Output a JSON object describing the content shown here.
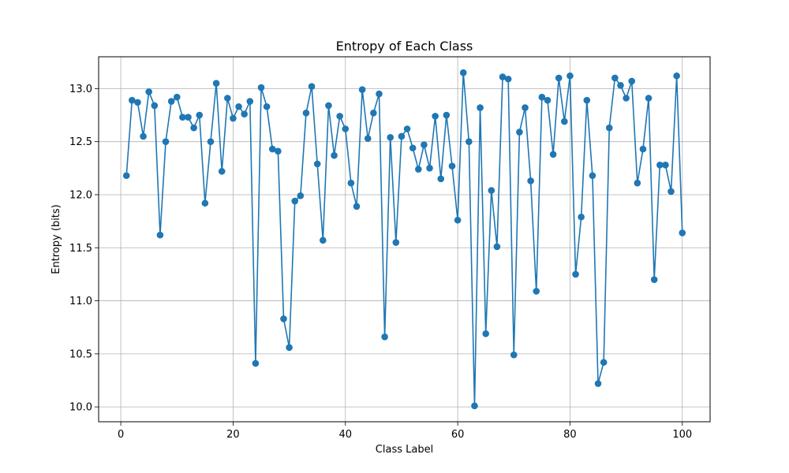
{
  "chart_data": {
    "type": "line",
    "title": "Entropy of Each Class",
    "xlabel": "Class Label",
    "ylabel": "Entropy (bits)",
    "xlim": [
      -3.95,
      104.95
    ],
    "ylim": [
      9.86,
      13.3
    ],
    "xticks": [
      0,
      20,
      40,
      60,
      80,
      100
    ],
    "yticks": [
      10.0,
      10.5,
      11.0,
      11.5,
      12.0,
      12.5,
      13.0
    ],
    "ytick_labels": [
      "10.0",
      "10.5",
      "11.0",
      "11.5",
      "12.0",
      "12.5",
      "13.0"
    ],
    "grid": true,
    "color": "#1f77b4",
    "marker": "circle",
    "x": [
      1,
      2,
      3,
      4,
      5,
      6,
      7,
      8,
      9,
      10,
      11,
      12,
      13,
      14,
      15,
      16,
      17,
      18,
      19,
      20,
      21,
      22,
      23,
      24,
      25,
      26,
      27,
      28,
      29,
      30,
      31,
      32,
      33,
      34,
      35,
      36,
      37,
      38,
      39,
      40,
      41,
      42,
      43,
      44,
      45,
      46,
      47,
      48,
      49,
      50,
      51,
      52,
      53,
      54,
      55,
      56,
      57,
      58,
      59,
      60,
      61,
      62,
      63,
      64,
      65,
      66,
      67,
      68,
      69,
      70,
      71,
      72,
      73,
      74,
      75,
      76,
      77,
      78,
      79,
      80,
      81,
      82,
      83,
      84,
      85,
      86,
      87,
      88,
      89,
      90,
      91,
      92,
      93,
      94,
      95,
      96,
      97,
      98,
      99,
      100
    ],
    "y": [
      12.18,
      12.89,
      12.87,
      12.55,
      12.97,
      12.84,
      11.62,
      12.5,
      12.88,
      12.92,
      12.73,
      12.73,
      12.63,
      12.75,
      11.92,
      12.5,
      13.05,
      12.22,
      12.91,
      12.72,
      12.83,
      12.76,
      12.88,
      10.41,
      13.01,
      12.83,
      12.43,
      12.41,
      10.83,
      10.56,
      11.94,
      11.99,
      12.77,
      13.02,
      12.29,
      11.57,
      12.84,
      12.37,
      12.74,
      12.62,
      12.11,
      11.89,
      12.99,
      12.53,
      12.77,
      12.95,
      10.66,
      12.54,
      11.55,
      12.55,
      12.62,
      12.44,
      12.24,
      12.47,
      12.25,
      12.74,
      12.15,
      12.75,
      12.27,
      11.76,
      13.15,
      12.5,
      10.01,
      12.82,
      10.69,
      12.04,
      11.51,
      13.11,
      13.09,
      10.49,
      12.59,
      12.82,
      12.13,
      11.09,
      12.92,
      12.89,
      12.38,
      13.1,
      12.69,
      13.12,
      11.25,
      11.79,
      12.89,
      12.18,
      10.22,
      10.42,
      12.63,
      13.1,
      13.03,
      12.91,
      13.07,
      12.11,
      12.43,
      12.91,
      11.2,
      12.28,
      12.28,
      12.03,
      13.12,
      11.64
    ]
  }
}
